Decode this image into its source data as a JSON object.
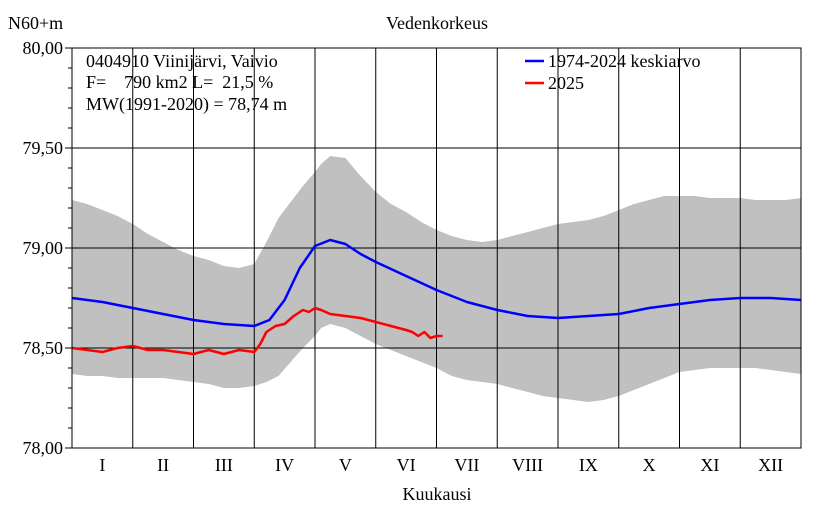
{
  "chart_data": {
    "type": "line",
    "title": "Vedenkorkeus",
    "ylabel": "N60+m",
    "xlabel": "Kuukausi",
    "ylim": [
      78.0,
      80.0
    ],
    "xlim": [
      0,
      12
    ],
    "yticks": [
      "78,00",
      "78,50",
      "79,00",
      "79,50",
      "80,00"
    ],
    "ytick_values": [
      78.0,
      78.5,
      79.0,
      79.5,
      80.0
    ],
    "months": [
      "I",
      "II",
      "III",
      "IV",
      "V",
      "VI",
      "VII",
      "VIII",
      "IX",
      "X",
      "XI",
      "XII"
    ],
    "grid": true,
    "legend_position": "top-right",
    "info": {
      "line1": "0404910 Viinijärvi, Vaivio",
      "line2": "F=    790 km2 L=  21,5 %",
      "line3": "MW(1991-2020) = 78,74 m"
    },
    "colors": {
      "mean": "#0000ff",
      "current": "#ff0000",
      "band": "#c0c0c0"
    },
    "range_band": {
      "x": [
        0,
        0.25,
        0.5,
        0.75,
        1.0,
        1.25,
        1.5,
        1.75,
        2.0,
        2.25,
        2.5,
        2.75,
        3.0,
        3.2,
        3.4,
        3.6,
        3.8,
        4.0,
        4.1,
        4.25,
        4.5,
        4.75,
        5.0,
        5.25,
        5.5,
        5.75,
        6.0,
        6.25,
        6.5,
        6.75,
        7.0,
        7.25,
        7.5,
        7.75,
        8.0,
        8.25,
        8.5,
        8.75,
        9.0,
        9.25,
        9.5,
        9.75,
        10.0,
        10.25,
        10.5,
        10.75,
        11.0,
        11.25,
        11.5,
        11.75,
        12.0
      ],
      "max": [
        79.24,
        79.22,
        79.19,
        79.16,
        79.12,
        79.07,
        79.03,
        78.99,
        78.96,
        78.94,
        78.91,
        78.9,
        78.92,
        79.03,
        79.15,
        79.23,
        79.31,
        79.38,
        79.42,
        79.46,
        79.45,
        79.36,
        79.28,
        79.22,
        79.18,
        79.13,
        79.09,
        79.06,
        79.04,
        79.03,
        79.04,
        79.06,
        79.08,
        79.1,
        79.12,
        79.13,
        79.14,
        79.16,
        79.19,
        79.22,
        79.24,
        79.26,
        79.26,
        79.26,
        79.25,
        79.25,
        79.25,
        79.24,
        79.24,
        79.24,
        79.25
      ],
      "min": [
        78.37,
        78.36,
        78.36,
        78.35,
        78.35,
        78.35,
        78.35,
        78.34,
        78.33,
        78.32,
        78.3,
        78.3,
        78.31,
        78.33,
        78.36,
        78.43,
        78.5,
        78.56,
        78.6,
        78.62,
        78.6,
        78.56,
        78.52,
        78.49,
        78.46,
        78.43,
        78.4,
        78.36,
        78.34,
        78.33,
        78.32,
        78.3,
        78.28,
        78.26,
        78.25,
        78.24,
        78.23,
        78.24,
        78.26,
        78.29,
        78.32,
        78.35,
        78.38,
        78.39,
        78.4,
        78.4,
        78.4,
        78.4,
        78.39,
        78.38,
        78.37
      ]
    },
    "series": [
      {
        "name": "1974-2024 keskiarvo",
        "color": "#0000ff",
        "x": [
          0,
          0.5,
          1.0,
          1.5,
          2.0,
          2.5,
          3.0,
          3.25,
          3.5,
          3.75,
          4.0,
          4.25,
          4.5,
          4.75,
          5.0,
          5.5,
          6.0,
          6.5,
          7.0,
          7.5,
          8.0,
          8.5,
          9.0,
          9.5,
          10.0,
          10.5,
          11.0,
          11.5,
          12.0
        ],
        "y": [
          78.75,
          78.73,
          78.7,
          78.67,
          78.64,
          78.62,
          78.61,
          78.64,
          78.74,
          78.9,
          79.01,
          79.04,
          79.02,
          78.97,
          78.93,
          78.86,
          78.79,
          78.73,
          78.69,
          78.66,
          78.65,
          78.66,
          78.67,
          78.7,
          78.72,
          78.74,
          78.75,
          78.75,
          78.74
        ]
      },
      {
        "name": "2025",
        "color": "#ff0000",
        "x": [
          0,
          0.25,
          0.5,
          0.75,
          1.0,
          1.25,
          1.5,
          1.75,
          2.0,
          2.25,
          2.5,
          2.75,
          3.0,
          3.1,
          3.2,
          3.35,
          3.5,
          3.65,
          3.8,
          3.9,
          4.0,
          4.1,
          4.25,
          4.5,
          4.75,
          5.0,
          5.25,
          5.5,
          5.6,
          5.7,
          5.8,
          5.9,
          6.0,
          6.1
        ],
        "y": [
          78.5,
          78.49,
          78.48,
          78.5,
          78.51,
          78.49,
          78.49,
          78.48,
          78.47,
          78.49,
          78.47,
          78.49,
          78.48,
          78.52,
          78.58,
          78.61,
          78.62,
          78.66,
          78.69,
          78.68,
          78.7,
          78.69,
          78.67,
          78.66,
          78.65,
          78.63,
          78.61,
          78.59,
          78.58,
          78.56,
          78.58,
          78.55,
          78.56,
          78.56
        ]
      }
    ]
  }
}
